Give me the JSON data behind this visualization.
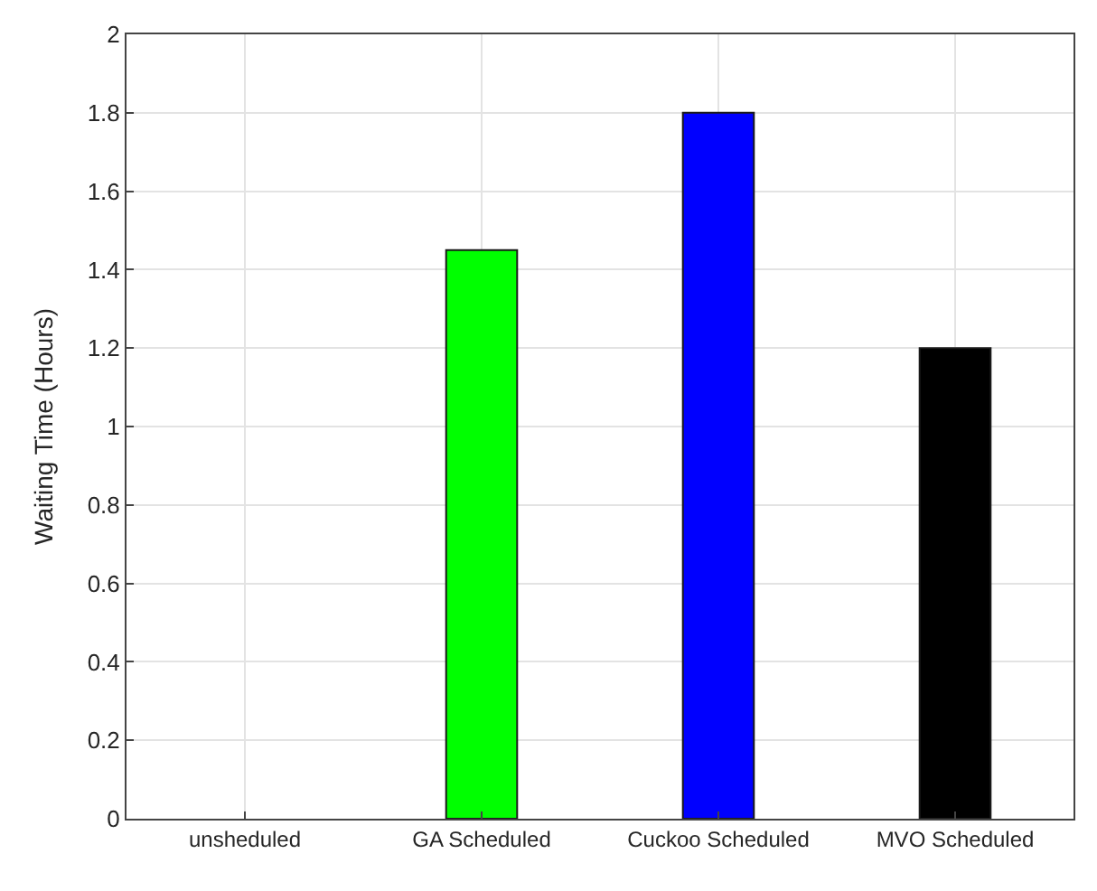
{
  "chart_data": {
    "type": "bar",
    "ylabel": "Waiting Time (Hours)",
    "categories": [
      "unsheduled",
      "GA Scheduled",
      "Cuckoo Scheduled",
      "MVO Scheduled"
    ],
    "values": [
      null,
      1.45,
      1.8,
      1.2
    ],
    "colors": [
      null,
      "#00ff00",
      "#0000ff",
      "#000000"
    ],
    "ylim": [
      0,
      2
    ],
    "yticks": [
      0,
      0.2,
      0.4,
      0.6,
      0.8,
      1,
      1.2,
      1.4,
      1.6,
      1.8,
      2
    ],
    "grid": true
  }
}
